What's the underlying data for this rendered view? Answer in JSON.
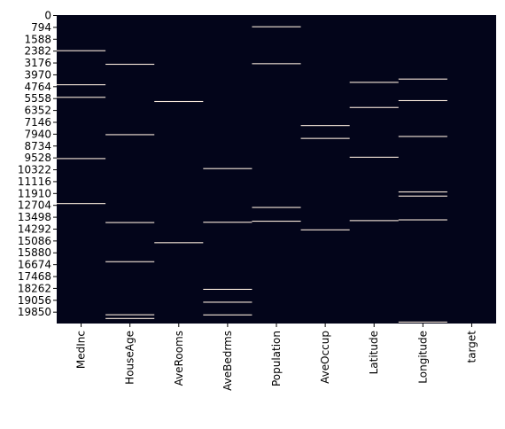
{
  "chart_data": {
    "type": "heatmap",
    "title": "",
    "xlabel": "",
    "ylabel": "",
    "columns": [
      "MedInc",
      "HouseAge",
      "AveRooms",
      "AveBedrms",
      "Population",
      "AveOccup",
      "Latitude",
      "Longitude",
      "target"
    ],
    "row_count": 20640,
    "y_tick_labels": [
      "0",
      "794",
      "1588",
      "2382",
      "3176",
      "3970",
      "4764",
      "5558",
      "6352",
      "7146",
      "7940",
      "8734",
      "9528",
      "10322",
      "11116",
      "11910",
      "12704",
      "13498",
      "14292",
      "15086",
      "15880",
      "16674",
      "17468",
      "18262",
      "19056",
      "19850"
    ],
    "colors": {
      "present": "#03051A",
      "missing": "#FAEBDD",
      "axis": "#000000"
    },
    "missing_rows": {
      "MedInc": [
        2382,
        4660,
        5500,
        9600,
        12610
      ],
      "HouseAge": [
        3290,
        8000,
        13880,
        16500,
        20050,
        20300
      ],
      "AveRooms": [
        5780,
        15230
      ],
      "AveBedrms": [
        10270,
        13860,
        18350,
        19210,
        20060
      ],
      "Population": [
        780,
        3250,
        12870,
        13790
      ],
      "AveOccup": [
        7390,
        8250,
        14370
      ],
      "Latitude": [
        4500,
        6180,
        9510,
        13750
      ],
      "Longitude": [
        4280,
        5720,
        8120,
        11830,
        12110,
        13700,
        20540
      ],
      "target": []
    }
  }
}
